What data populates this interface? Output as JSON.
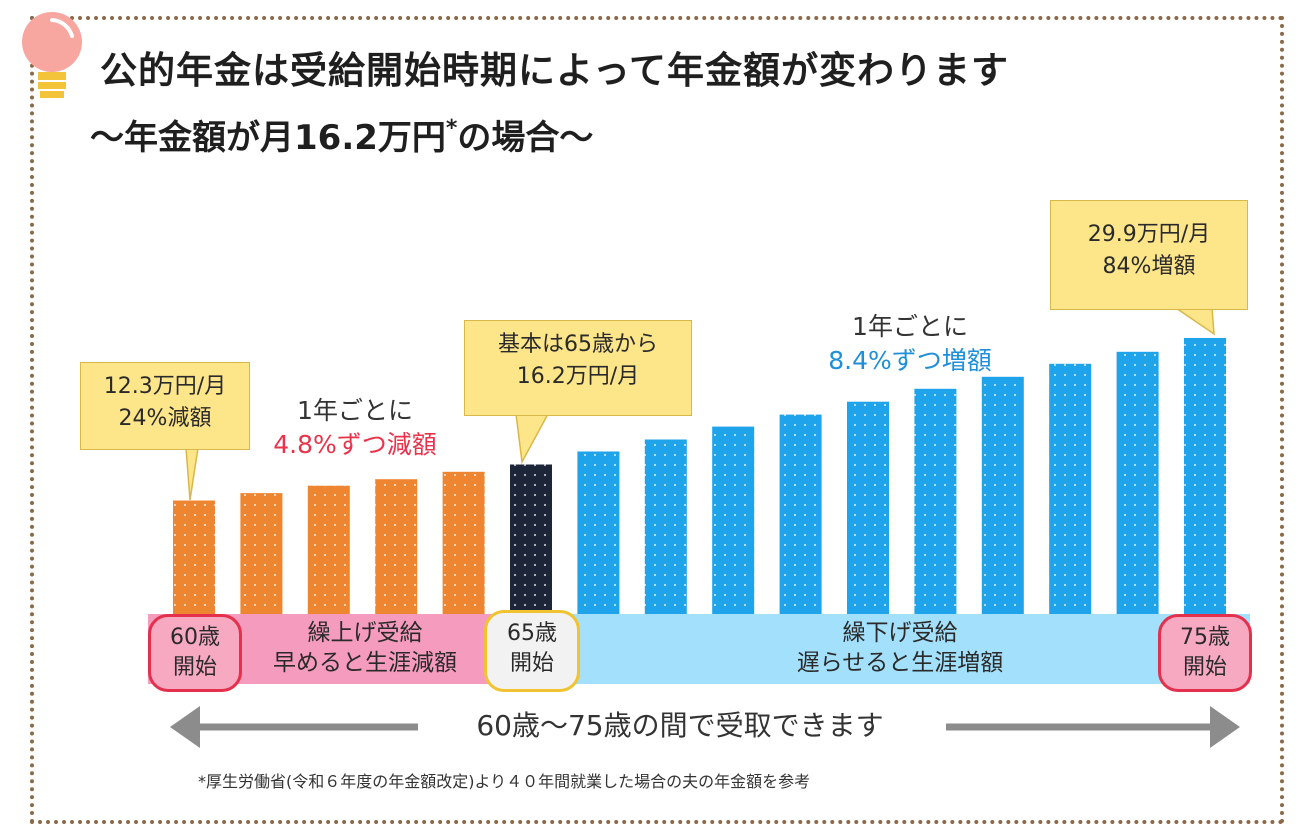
{
  "title": "公的年金は受給開始時期によって年金額が変わります",
  "subtitle": "～年金額が月16.2万円",
  "subtitle_mark": "*",
  "subtitle_end": "の場合～",
  "callouts": {
    "early": {
      "line1": "12.3万円/月",
      "line2": "24%減額"
    },
    "base": {
      "line1": "基本は65歳から",
      "line2": "16.2万円/月"
    },
    "late": {
      "line1": "29.9万円/月",
      "line2": "84%増額"
    }
  },
  "notes": {
    "decrease": {
      "line1": "1年ごとに",
      "line2": "4.8%ずつ減額"
    },
    "increase": {
      "line1": "1年ごとに",
      "line2": "8.4%ずつ増額"
    }
  },
  "bands": {
    "early": {
      "line1": "繰上げ受給",
      "line2": "早めると生涯減額"
    },
    "late": {
      "line1": "繰下げ受給",
      "line2": "遅らせると生涯増額"
    }
  },
  "badges": {
    "start60": {
      "line1": "60歳",
      "line2": "開始"
    },
    "start65": {
      "line1": "65歳",
      "line2": "開始"
    },
    "start75": {
      "line1": "75歳",
      "line2": "開始"
    }
  },
  "range_label": "60歳～75歳の間で受取できます",
  "footnote": "*厚生労働省(令和６年度の年金額改定)より４０年間就業した場合の夫の年金額を参考",
  "colors": {
    "early_bar": "#ee8530",
    "base_bar": "#1d2638",
    "late_bar": "#1fa3ea",
    "early_band": "#f59bbd",
    "late_band": "#a3e0fb",
    "callout": "#fde58a"
  },
  "chart_data": {
    "type": "bar",
    "title": "公的年金は受給開始時期によって年金額が変わります",
    "categories": [
      "60",
      "61",
      "62",
      "63",
      "64",
      "65",
      "66",
      "67",
      "68",
      "69",
      "70",
      "71",
      "72",
      "73",
      "74",
      "75"
    ],
    "unit": "万円/月",
    "values": [
      12.3,
      13.1,
      13.9,
      14.6,
      15.4,
      16.2,
      17.6,
      18.9,
      20.3,
      21.6,
      23.0,
      24.4,
      25.7,
      27.1,
      28.4,
      29.9
    ],
    "groups": [
      "early",
      "early",
      "early",
      "early",
      "early",
      "base",
      "late",
      "late",
      "late",
      "late",
      "late",
      "late",
      "late",
      "late",
      "late",
      "late"
    ],
    "ylim": [
      0,
      29.9
    ],
    "xlabel": "",
    "ylabel": ""
  }
}
